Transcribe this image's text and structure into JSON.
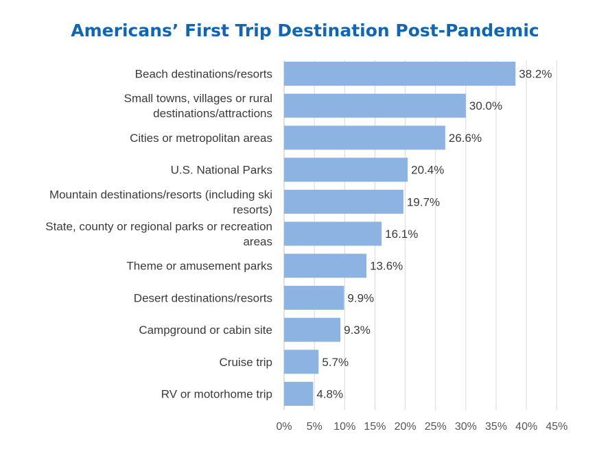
{
  "chart_data": {
    "type": "bar",
    "orientation": "horizontal",
    "title": "Americans’ First Trip Destination Post-Pandemic",
    "categories": [
      [
        "Beach destinations/resorts"
      ],
      [
        "Small towns, villages or rural",
        "destinations/attractions"
      ],
      [
        "Cities or metropolitan areas"
      ],
      [
        "U.S. National Parks"
      ],
      [
        "Mountain destinations/resorts (including ski",
        "resorts)"
      ],
      [
        "State, county or regional parks or recreation",
        "areas"
      ],
      [
        "Theme or amusement parks"
      ],
      [
        "Desert destinations/resorts"
      ],
      [
        "Campground or cabin site"
      ],
      [
        "Cruise trip"
      ],
      [
        "RV or motorhome trip"
      ]
    ],
    "values": [
      38.2,
      30.0,
      26.6,
      20.4,
      19.7,
      16.1,
      13.6,
      9.9,
      9.3,
      5.7,
      4.8
    ],
    "value_labels": [
      "38.2%",
      "30.0%",
      "26.6%",
      "20.4%",
      "19.7%",
      "16.1%",
      "13.6%",
      "9.9%",
      "9.3%",
      "5.7%",
      "4.8%"
    ],
    "xlim": [
      0,
      45
    ],
    "xticks": [
      0,
      5,
      10,
      15,
      20,
      25,
      30,
      35,
      40,
      45
    ],
    "xtick_labels": [
      "0%",
      "5%",
      "10%",
      "15%",
      "20%",
      "25%",
      "30%",
      "35%",
      "40%",
      "45%"
    ],
    "xlabel": "",
    "ylabel": "",
    "grid": "vertical",
    "legend": "none",
    "colors": {
      "bar": "#8db3e2",
      "title": "#1166b3",
      "grid": "#d9d9d9",
      "text": "#3a3a3a"
    }
  }
}
